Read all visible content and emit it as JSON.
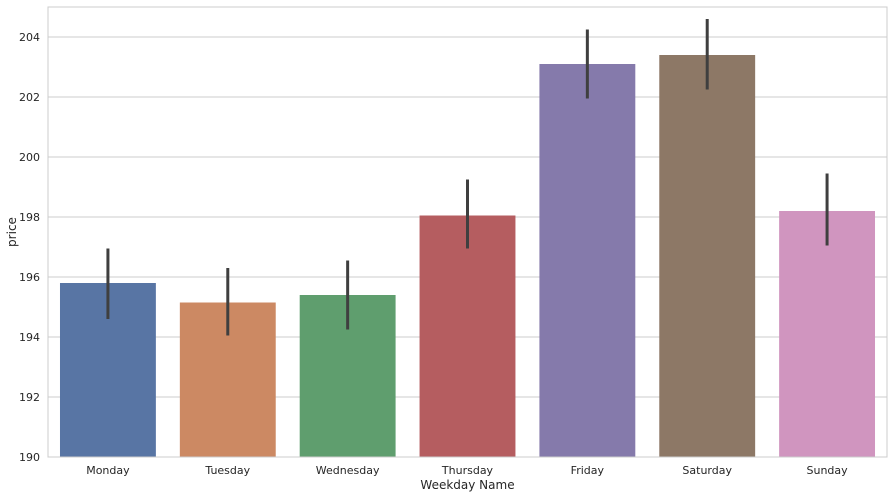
{
  "chart_data": {
    "type": "bar",
    "title": "",
    "xlabel": "Weekday Name",
    "ylabel": "price",
    "categories": [
      "Monday",
      "Tuesday",
      "Wednesday",
      "Thursday",
      "Friday",
      "Saturday",
      "Sunday"
    ],
    "values": [
      195.8,
      195.15,
      195.4,
      198.05,
      203.1,
      203.4,
      198.2
    ],
    "error_low": [
      194.6,
      194.05,
      194.25,
      196.95,
      201.95,
      202.25,
      197.05
    ],
    "error_high": [
      196.95,
      196.3,
      196.55,
      199.25,
      204.25,
      204.6,
      199.45
    ],
    "ylim": [
      190,
      205
    ],
    "yticks": [
      190,
      192,
      194,
      196,
      198,
      200,
      202,
      204
    ],
    "grid": "horizontal",
    "colors": [
      "#5875a4",
      "#cc8963",
      "#5f9e6e",
      "#b55d60",
      "#857aab",
      "#8d7866",
      "#d095bf"
    ],
    "error_color": "#3f3f3f",
    "grid_color": "#cccccc",
    "frame_color": "#cccccc"
  }
}
